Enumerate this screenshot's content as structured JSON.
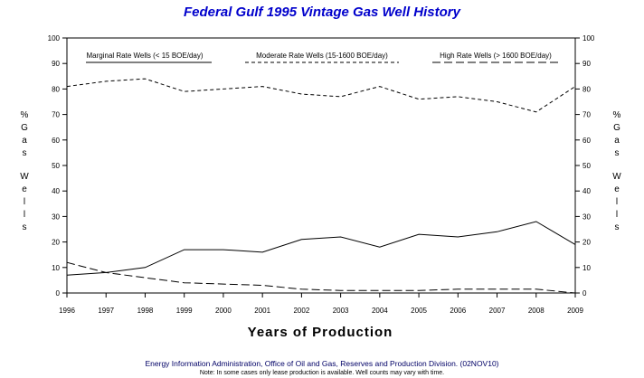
{
  "chart_data": {
    "type": "line",
    "title": "Federal Gulf 1995 Vintage Gas Well History",
    "xlabel": "Years of Production",
    "ylabel": [
      "%",
      "G",
      "a",
      "s",
      "W",
      "e",
      "l",
      "l",
      "s"
    ],
    "x": [
      1996,
      1997,
      1998,
      1999,
      2000,
      2001,
      2002,
      2003,
      2004,
      2005,
      2006,
      2007,
      2008,
      2009
    ],
    "xticklabels": [
      "1996",
      "1997",
      "1998",
      "1999",
      "2000",
      "2001",
      "2002",
      "2003",
      "2004",
      "2005",
      "2006",
      "2007",
      "2008",
      "2009"
    ],
    "ylim": [
      0,
      100
    ],
    "yticks": [
      0,
      10,
      20,
      30,
      40,
      50,
      60,
      70,
      80,
      90,
      100
    ],
    "grid": false,
    "legend_placement": "top",
    "series": [
      {
        "name": "Marginal Rate Wells (< 15 BOE/day)",
        "style": "solid",
        "values": [
          7,
          8,
          10,
          17,
          17,
          16,
          21,
          22,
          18,
          23,
          22,
          24,
          28,
          19
        ]
      },
      {
        "name": "Moderate Rate Wells (15-1600 BOE/day)",
        "style": "short-dash",
        "values": [
          81,
          83,
          84,
          79,
          80,
          81,
          78,
          77,
          81,
          76,
          77,
          75,
          71,
          81
        ]
      },
      {
        "name": "High Rate Wells (> 1600 BOE/day)",
        "style": "long-dash",
        "values": [
          12,
          8,
          6,
          4,
          3.5,
          3,
          1.5,
          1,
          1,
          1,
          1.5,
          1.5,
          1.5,
          0
        ]
      }
    ]
  },
  "footer": {
    "source": "Energy Information Administration, Office of Oil and Gas, Reserves and Production Division. (02NOV10)",
    "note": "Note: In some cases only lease production is available. Well counts may vary with time."
  },
  "colors": {
    "title": "#0000cc",
    "footer": "#000066",
    "lines": "#000000"
  }
}
